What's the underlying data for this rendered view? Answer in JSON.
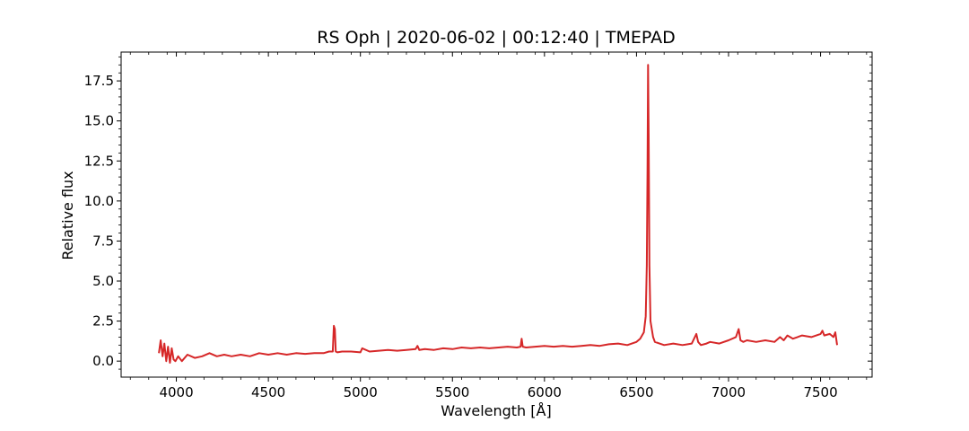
{
  "chart_data": {
    "type": "line",
    "title": "RS Oph | 2020-06-02 | 00:12:40 | TMEPAD",
    "xlabel": "Wavelength [Å]",
    "ylabel": "Relative flux",
    "xlim": [
      3700,
      7780
    ],
    "ylim": [
      -1.0,
      19.3
    ],
    "xticks": [
      4000,
      4500,
      5000,
      5500,
      6000,
      6500,
      7000,
      7500
    ],
    "yticks": [
      0.0,
      2.5,
      5.0,
      7.5,
      10.0,
      12.5,
      15.0,
      17.5
    ],
    "xtick_labels": [
      "4000",
      "4500",
      "5000",
      "5500",
      "6000",
      "6500",
      "7000",
      "7500"
    ],
    "ytick_labels": [
      "0.0",
      "2.5",
      "5.0",
      "7.5",
      "10.0",
      "12.5",
      "15.0",
      "17.5"
    ],
    "series": [
      {
        "color": "#d62728",
        "x": [
          3905,
          3915,
          3925,
          3935,
          3945,
          3955,
          3965,
          3975,
          3985,
          3995,
          4010,
          4030,
          4060,
          4100,
          4140,
          4180,
          4220,
          4260,
          4300,
          4350,
          4400,
          4450,
          4500,
          4550,
          4600,
          4650,
          4700,
          4750,
          4800,
          4830,
          4850,
          4856,
          4861,
          4866,
          4875,
          4900,
          4950,
          5000,
          5010,
          5050,
          5100,
          5150,
          5200,
          5250,
          5300,
          5310,
          5320,
          5350,
          5400,
          5450,
          5500,
          5550,
          5600,
          5650,
          5700,
          5750,
          5800,
          5850,
          5870,
          5876,
          5882,
          5900,
          5950,
          6000,
          6050,
          6100,
          6150,
          6200,
          6250,
          6300,
          6350,
          6400,
          6450,
          6500,
          6520,
          6540,
          6550,
          6556,
          6560,
          6563,
          6566,
          6570,
          6576,
          6590,
          6600,
          6650,
          6700,
          6750,
          6800,
          6825,
          6835,
          6850,
          6880,
          6900,
          6950,
          7000,
          7040,
          7055,
          7065,
          7080,
          7100,
          7150,
          7200,
          7250,
          7280,
          7300,
          7320,
          7350,
          7400,
          7450,
          7500,
          7510,
          7520,
          7550,
          7570,
          7580,
          7590
        ],
        "y": [
          0.5,
          1.3,
          0.3,
          1.1,
          0.0,
          0.9,
          -0.1,
          0.8,
          0.1,
          0.0,
          0.3,
          0.0,
          0.4,
          0.2,
          0.3,
          0.5,
          0.3,
          0.4,
          0.3,
          0.4,
          0.3,
          0.5,
          0.4,
          0.5,
          0.4,
          0.5,
          0.45,
          0.5,
          0.5,
          0.6,
          0.6,
          2.2,
          2.0,
          0.6,
          0.55,
          0.6,
          0.6,
          0.55,
          0.8,
          0.6,
          0.65,
          0.7,
          0.65,
          0.7,
          0.75,
          0.95,
          0.7,
          0.75,
          0.7,
          0.8,
          0.75,
          0.85,
          0.8,
          0.85,
          0.8,
          0.85,
          0.9,
          0.85,
          0.9,
          1.4,
          0.9,
          0.85,
          0.9,
          0.95,
          0.9,
          0.95,
          0.9,
          0.95,
          1.0,
          0.95,
          1.05,
          1.1,
          1.0,
          1.2,
          1.4,
          1.8,
          2.8,
          6.0,
          12.0,
          18.5,
          14.0,
          6.0,
          2.5,
          1.5,
          1.2,
          1.0,
          1.1,
          1.0,
          1.1,
          1.7,
          1.2,
          1.0,
          1.1,
          1.2,
          1.1,
          1.3,
          1.5,
          2.0,
          1.3,
          1.2,
          1.3,
          1.2,
          1.3,
          1.2,
          1.5,
          1.3,
          1.6,
          1.4,
          1.6,
          1.5,
          1.7,
          1.9,
          1.6,
          1.7,
          1.5,
          1.8,
          1.0
        ]
      }
    ],
    "grid": false,
    "legend": false
  }
}
